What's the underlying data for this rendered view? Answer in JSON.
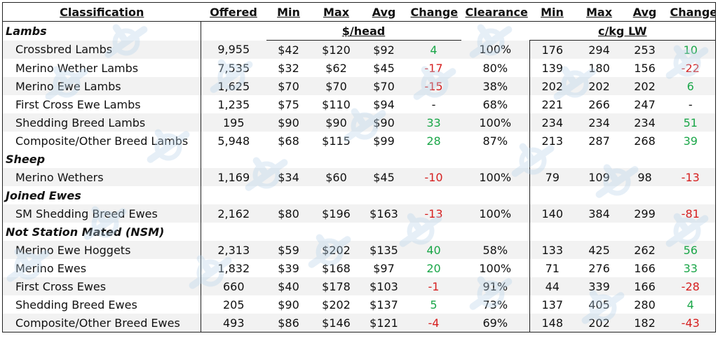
{
  "headers": [
    "Classification",
    "Offered",
    "Min",
    "Max",
    "Avg",
    "Change",
    "Clearance",
    "Min",
    "Max",
    "Avg",
    "Change"
  ],
  "units": {
    "head": "$/head",
    "kg": "c/kg LW"
  },
  "groups": [
    {
      "title": "Lambs",
      "rows": [
        {
          "name": "Crossbred Lambs",
          "offered": "9,955",
          "min": "$42",
          "max": "$120",
          "avg": "$92",
          "change": "4",
          "change_sign": "pos",
          "clearance": "100%",
          "kmin": "176",
          "kmax": "294",
          "kavg": "253",
          "kchange": "10",
          "kchange_sign": "pos"
        },
        {
          "name": "Merino Wether Lambs",
          "offered": "7,535",
          "min": "$32",
          "max": "$62",
          "avg": "$45",
          "change": "-17",
          "change_sign": "neg",
          "clearance": "80%",
          "kmin": "139",
          "kmax": "180",
          "kavg": "156",
          "kchange": "-22",
          "kchange_sign": "neg"
        },
        {
          "name": "Merino Ewe Lambs",
          "offered": "1,625",
          "min": "$70",
          "max": "$70",
          "avg": "$70",
          "change": "-15",
          "change_sign": "neg",
          "clearance": "38%",
          "kmin": "202",
          "kmax": "202",
          "kavg": "202",
          "kchange": "6",
          "kchange_sign": "pos"
        },
        {
          "name": "First Cross Ewe Lambs",
          "offered": "1,235",
          "min": "$75",
          "max": "$110",
          "avg": "$94",
          "change": "-",
          "change_sign": "zero",
          "clearance": "68%",
          "kmin": "221",
          "kmax": "266",
          "kavg": "247",
          "kchange": "-",
          "kchange_sign": "zero"
        },
        {
          "name": "Shedding Breed Lambs",
          "offered": "195",
          "min": "$90",
          "max": "$90",
          "avg": "$90",
          "change": "33",
          "change_sign": "pos",
          "clearance": "100%",
          "kmin": "234",
          "kmax": "234",
          "kavg": "234",
          "kchange": "51",
          "kchange_sign": "pos"
        },
        {
          "name": "Composite/Other Breed Lambs",
          "offered": "5,948",
          "min": "$68",
          "max": "$115",
          "avg": "$99",
          "change": "28",
          "change_sign": "pos",
          "clearance": "87%",
          "kmin": "213",
          "kmax": "287",
          "kavg": "268",
          "kchange": "39",
          "kchange_sign": "pos"
        }
      ]
    },
    {
      "title": "Sheep",
      "rows": [
        {
          "name": "Merino Wethers",
          "offered": "1,169",
          "min": "$34",
          "max": "$60",
          "avg": "$45",
          "change": "-10",
          "change_sign": "neg",
          "clearance": "100%",
          "kmin": "79",
          "kmax": "109",
          "kavg": "98",
          "kchange": "-13",
          "kchange_sign": "neg"
        }
      ]
    },
    {
      "title": "Joined Ewes",
      "rows": [
        {
          "name": "SM Shedding Breed Ewes",
          "offered": "2,162",
          "min": "$80",
          "max": "$196",
          "avg": "$163",
          "change": "-13",
          "change_sign": "neg",
          "clearance": "100%",
          "kmin": "140",
          "kmax": "384",
          "kavg": "299",
          "kchange": "-81",
          "kchange_sign": "neg"
        }
      ]
    },
    {
      "title": "Not Station Mated (NSM)",
      "rows": [
        {
          "name": "Merino Ewe Hoggets",
          "offered": "2,313",
          "min": "$59",
          "max": "$202",
          "avg": "$135",
          "change": "40",
          "change_sign": "pos",
          "clearance": "58%",
          "kmin": "133",
          "kmax": "425",
          "kavg": "262",
          "kchange": "56",
          "kchange_sign": "pos"
        },
        {
          "name": "Merino Ewes",
          "offered": "1,832",
          "min": "$39",
          "max": "$168",
          "avg": "$97",
          "change": "20",
          "change_sign": "pos",
          "clearance": "100%",
          "kmin": "71",
          "kmax": "276",
          "kavg": "166",
          "kchange": "33",
          "kchange_sign": "pos"
        },
        {
          "name": "First Cross Ewes",
          "offered": "660",
          "min": "$40",
          "max": "$178",
          "avg": "$103",
          "change": "-1",
          "change_sign": "neg",
          "clearance": "91%",
          "kmin": "44",
          "kmax": "339",
          "kavg": "166",
          "kchange": "-28",
          "kchange_sign": "neg"
        },
        {
          "name": "Shedding Breed Ewes",
          "offered": "205",
          "min": "$90",
          "max": "$202",
          "avg": "$137",
          "change": "5",
          "change_sign": "pos",
          "clearance": "73%",
          "kmin": "137",
          "kmax": "405",
          "kavg": "280",
          "kchange": "4",
          "kchange_sign": "pos"
        },
        {
          "name": "Composite/Other Breed Ewes",
          "offered": "493",
          "min": "$86",
          "max": "$146",
          "avg": "$121",
          "change": "-4",
          "change_sign": "neg",
          "clearance": "69%",
          "kmin": "148",
          "kmax": "202",
          "kavg": "182",
          "kchange": "-43",
          "kchange_sign": "neg"
        }
      ]
    }
  ],
  "colors": {
    "positive": "#1aa648",
    "negative": "#d62020",
    "watermark": "#b8d3ea"
  }
}
